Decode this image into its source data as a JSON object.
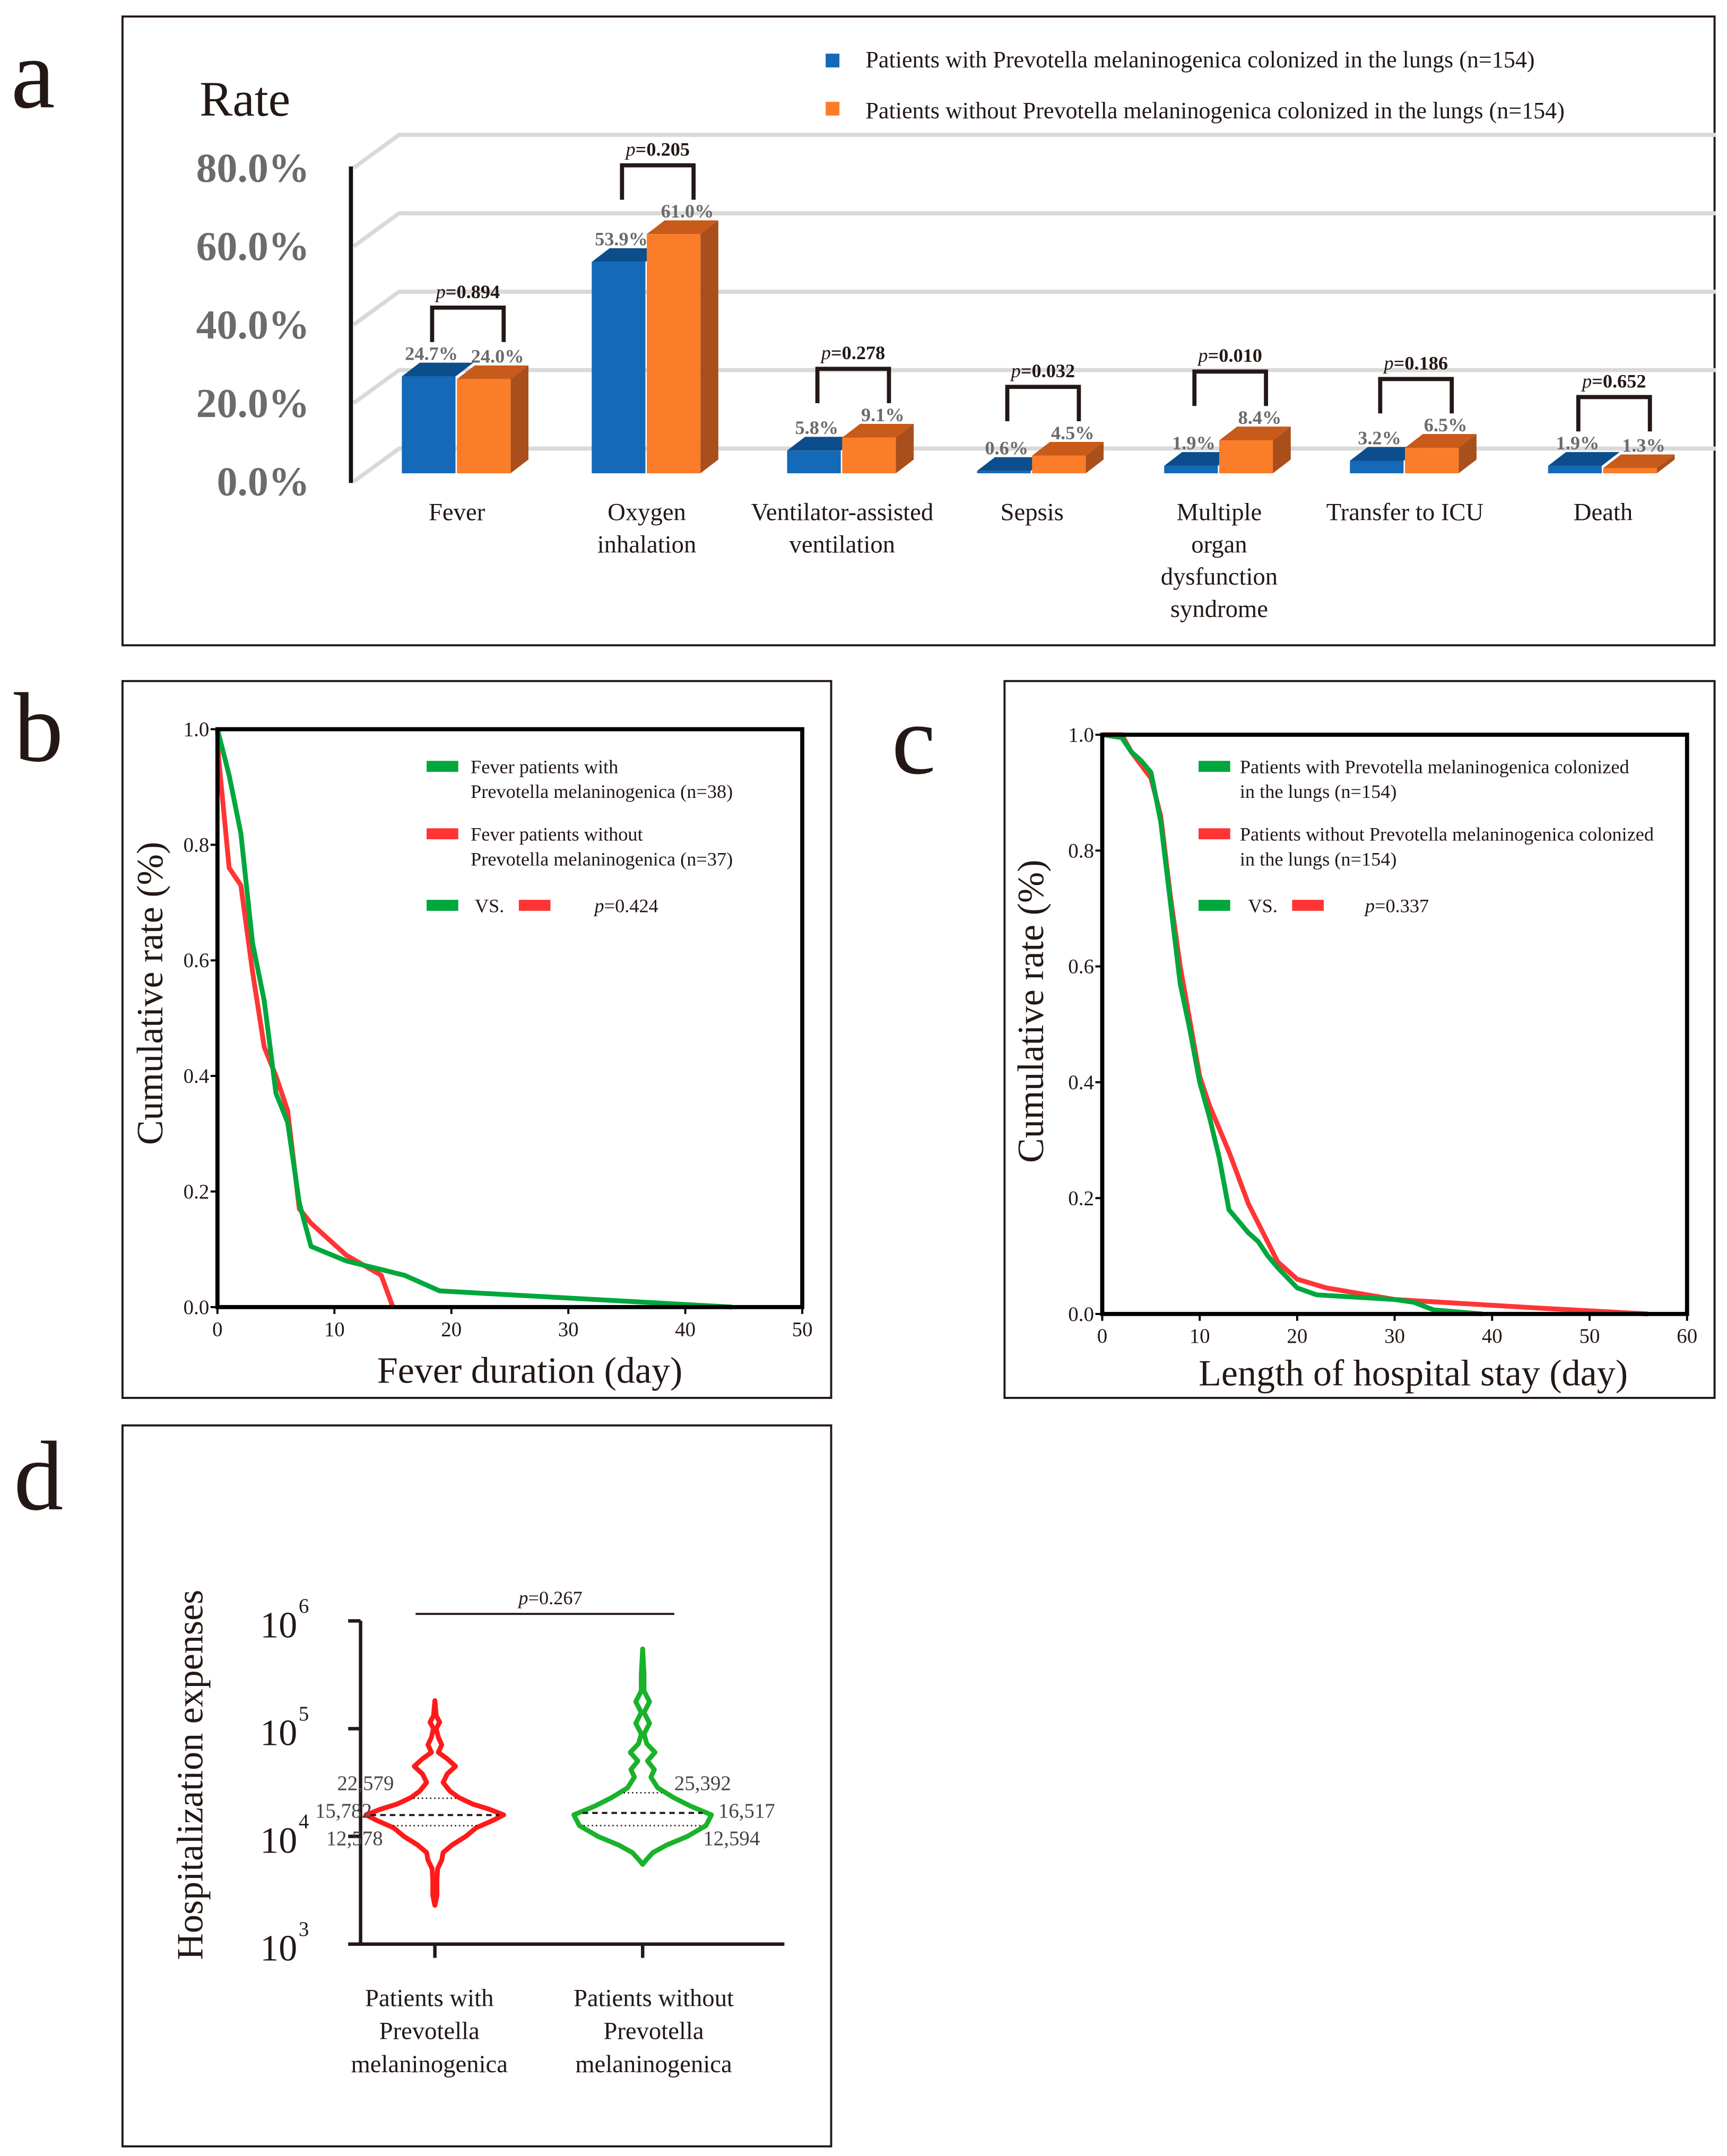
{
  "panel_labels": {
    "a": "a",
    "b": "b",
    "c": "c",
    "d": "d"
  },
  "colors": {
    "blue": "#1469b8",
    "orange": "#fb7d2a",
    "green": "#00a73c",
    "red": "#ff3535",
    "violin_red": "#ff1a1a",
    "violin_green": "#19b22a"
  },
  "chart_data": [
    {
      "id": "a",
      "type": "bar",
      "title": "Rate",
      "ylabel": "Rate",
      "ylim": [
        0,
        80
      ],
      "yticks": [
        "0.0%",
        "20.0%",
        "40.0%",
        "60.0%",
        "80.0%"
      ],
      "ytick_values": [
        0,
        20,
        40,
        60,
        80
      ],
      "legend": [
        "Patients with Prevotella melaninogenica colonized in the lungs (n=154)",
        "Patients without Prevotella melaninogenica colonized in the lungs (n=154)"
      ],
      "legend_position": "top-right",
      "categories": [
        [
          "Fever"
        ],
        [
          "Oxygen",
          "inhalation"
        ],
        [
          "Ventilator-assisted",
          "ventilation"
        ],
        [
          "Sepsis"
        ],
        [
          "Multiple",
          "organ",
          "dysfunction",
          "syndrome"
        ],
        [
          "Transfer to ICU"
        ],
        [
          "Death"
        ]
      ],
      "series": [
        {
          "name": "with",
          "values": [
            24.7,
            53.9,
            5.8,
            0.6,
            1.9,
            3.2,
            1.9
          ],
          "labels": [
            "24.7%",
            "53.9%",
            "5.8%",
            "0.6%",
            "1.9%",
            "3.2%",
            "1.9%"
          ]
        },
        {
          "name": "without",
          "values": [
            24.0,
            61.0,
            9.1,
            4.5,
            8.4,
            6.5,
            1.3
          ],
          "labels": [
            "24.0%",
            "61.0%",
            "9.1%",
            "4.5%",
            "8.4%",
            "6.5%",
            "1.3%"
          ]
        }
      ],
      "p_values": [
        "0.894",
        "0.205",
        "0.278",
        "0.032",
        "0.010",
        "0.186",
        "0.652"
      ],
      "p_prefix": "p",
      "grid": true
    },
    {
      "id": "b",
      "type": "line",
      "xlabel": "Fever duration (day)",
      "ylabel": "Cumulative rate (%)",
      "xlim": [
        0,
        50
      ],
      "ylim": [
        0,
        1
      ],
      "xticks": [
        "0",
        "10",
        "20",
        "30",
        "40",
        "50"
      ],
      "yticks": [
        "0.0",
        "0.2",
        "0.4",
        "0.6",
        "0.8",
        "1.0"
      ],
      "legend": [
        [
          "Fever patients with",
          "Prevotella melaninogenica (n=38)"
        ],
        [
          "Fever patients without",
          "Prevotella melaninogenica (n=37)"
        ]
      ],
      "vs_label": "VS.",
      "p_prefix": "p",
      "p_value": "=0.424",
      "legend_position": "top-right",
      "series": [
        {
          "name": "with",
          "color": "green",
          "x": [
            0,
            1,
            2,
            3,
            4,
            5,
            6,
            7,
            8,
            11,
            16,
            19,
            44
          ],
          "y": [
            1,
            0.92,
            0.82,
            0.63,
            0.53,
            0.37,
            0.32,
            0.18,
            0.105,
            0.08,
            0.055,
            0.028,
            0
          ]
        },
        {
          "name": "without",
          "color": "red",
          "x": [
            0,
            0.1,
            1,
            2,
            3,
            4,
            5,
            6,
            7,
            8,
            11,
            14,
            15
          ],
          "y": [
            1,
            0.95,
            0.76,
            0.73,
            0.58,
            0.45,
            0.4,
            0.34,
            0.17,
            0.145,
            0.09,
            0.055,
            0
          ]
        }
      ]
    },
    {
      "id": "c",
      "type": "line",
      "xlabel": "Length of hospital stay (day)",
      "ylabel": "Cumulative rate (%)",
      "xlim": [
        0,
        60
      ],
      "ylim": [
        0,
        1
      ],
      "xticks": [
        "0",
        "10",
        "20",
        "30",
        "40",
        "50",
        "60"
      ],
      "yticks": [
        "0.0",
        "0.2",
        "0.4",
        "0.6",
        "0.8",
        "1.0"
      ],
      "legend": [
        [
          "Patients with Prevotella melaninogenica colonized",
          " in the lungs (n=154)"
        ],
        [
          "Patients without Prevotella melaninogenica colonized",
          " in the lungs (n=154)"
        ]
      ],
      "vs_label": "VS.",
      "p_prefix": "p",
      "p_value": "=0.337",
      "legend_position": "top-right",
      "series": [
        {
          "name": "with",
          "color": "green",
          "x": [
            0,
            2,
            3,
            4,
            5,
            6,
            7,
            8,
            9,
            10,
            11,
            12,
            13,
            15,
            16,
            17,
            18,
            20,
            22,
            30,
            32,
            34,
            39
          ],
          "y": [
            1,
            0.995,
            0.97,
            0.955,
            0.935,
            0.85,
            0.71,
            0.57,
            0.49,
            0.4,
            0.34,
            0.27,
            0.18,
            0.14,
            0.125,
            0.1,
            0.08,
            0.045,
            0.033,
            0.025,
            0.02,
            0.007,
            0
          ]
        },
        {
          "name": "without",
          "color": "red",
          "x": [
            0,
            2,
            3,
            5,
            6,
            7,
            8,
            10,
            11,
            13,
            15,
            18,
            20,
            23,
            30,
            35,
            45,
            56
          ],
          "y": [
            1,
            1,
            0.97,
            0.925,
            0.86,
            0.72,
            0.6,
            0.41,
            0.36,
            0.28,
            0.19,
            0.09,
            0.06,
            0.045,
            0.025,
            0.02,
            0.01,
            0
          ]
        }
      ]
    },
    {
      "id": "d",
      "type": "violin",
      "ylabel": "Hospitalization expenses",
      "yscale": "log",
      "ylim": [
        1000,
        1000000
      ],
      "yticks": [
        {
          "base": "10",
          "exp": "3"
        },
        {
          "base": "10",
          "exp": "4"
        },
        {
          "base": "10",
          "exp": "5"
        },
        {
          "base": "10",
          "exp": "6"
        }
      ],
      "ytick_values": [
        3,
        4,
        5,
        6
      ],
      "p_prefix": "p",
      "p_value": "=0.267",
      "groups": [
        {
          "name": [
            "Patients with",
            "Prevotella",
            "melaninogenica"
          ],
          "color": "violin_red",
          "q1": 12578,
          "median": 15782,
          "q3": 22579,
          "q1_label": "12,578",
          "median_label": "15,782",
          "q3_label": "22,579",
          "density": [
            [
              3.36,
              0
            ],
            [
              3.45,
              0.03
            ],
            [
              3.6,
              0.03
            ],
            [
              3.7,
              0.04
            ],
            [
              3.78,
              0.1
            ],
            [
              3.85,
              0.12
            ],
            [
              3.92,
              0.25
            ],
            [
              4.0,
              0.45
            ],
            [
              4.08,
              0.6
            ],
            [
              4.15,
              0.85
            ],
            [
              4.2,
              1.0
            ],
            [
              4.25,
              0.8
            ],
            [
              4.3,
              0.55
            ],
            [
              4.36,
              0.35
            ],
            [
              4.42,
              0.22
            ],
            [
              4.5,
              0.12
            ],
            [
              4.58,
              0.18
            ],
            [
              4.65,
              0.3
            ],
            [
              4.72,
              0.18
            ],
            [
              4.78,
              0.05
            ],
            [
              4.85,
              0.1
            ],
            [
              4.92,
              0.05
            ],
            [
              5.0,
              0.02
            ],
            [
              5.06,
              0.07
            ],
            [
              5.12,
              0.02
            ],
            [
              5.26,
              0
            ]
          ]
        },
        {
          "name": [
            "Patients without",
            "Prevotella",
            "melaninogenica"
          ],
          "color": "violin_green",
          "q1": 12594,
          "median": 16517,
          "q3": 25392,
          "q1_label": "12,594",
          "median_label": "16,517",
          "q3_label": "25,392",
          "density": [
            [
              3.74,
              0
            ],
            [
              3.78,
              0.05
            ],
            [
              3.85,
              0.15
            ],
            [
              3.92,
              0.35
            ],
            [
              4.0,
              0.65
            ],
            [
              4.1,
              0.92
            ],
            [
              4.2,
              1.0
            ],
            [
              4.28,
              0.7
            ],
            [
              4.36,
              0.45
            ],
            [
              4.45,
              0.22
            ],
            [
              4.55,
              0.12
            ],
            [
              4.62,
              0.17
            ],
            [
              4.7,
              0.07
            ],
            [
              4.78,
              0.18
            ],
            [
              4.86,
              0.06
            ],
            [
              4.95,
              0.02
            ],
            [
              5.05,
              0.1
            ],
            [
              5.15,
              0.02
            ],
            [
              5.25,
              0.1
            ],
            [
              5.35,
              0.02
            ],
            [
              5.5,
              0.02
            ],
            [
              5.74,
              0
            ]
          ]
        }
      ]
    }
  ]
}
